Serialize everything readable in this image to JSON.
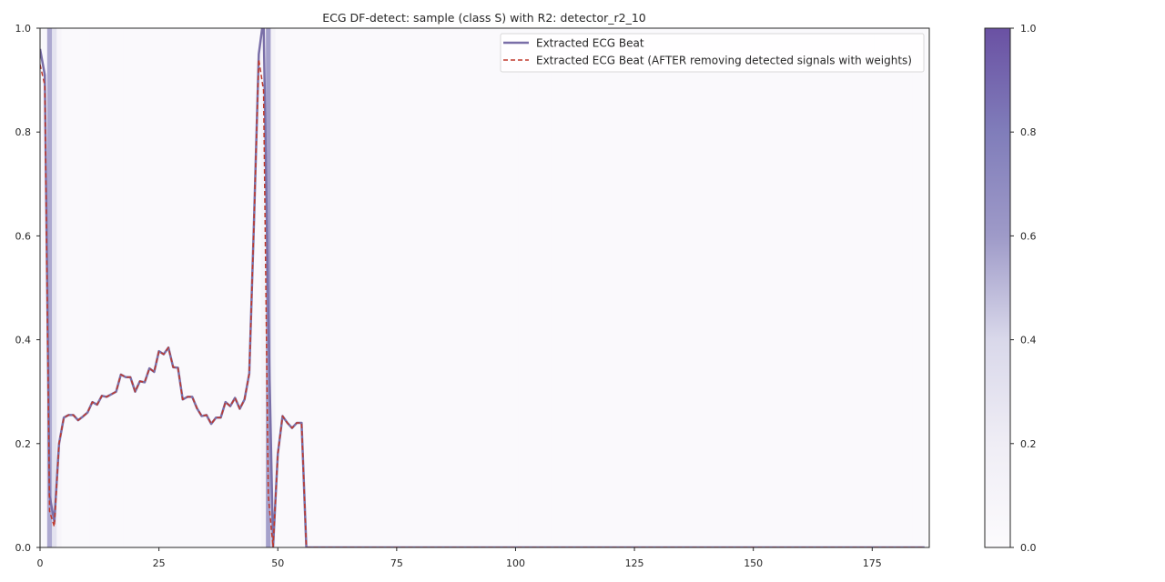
{
  "chart_data": {
    "type": "line",
    "title": "ECG DF-detect: sample (class S) with R2: detector_r2_10",
    "xlabel": "",
    "ylabel": "",
    "xlim": [
      0,
      187
    ],
    "ylim": [
      0,
      1.0
    ],
    "x_ticks": [
      0,
      25,
      50,
      75,
      100,
      125,
      150,
      175
    ],
    "y_ticks": [
      0.0,
      0.2,
      0.4,
      0.6,
      0.8,
      1.0
    ],
    "grid": false,
    "legend_position": "top-right",
    "series": [
      {
        "name": "Extracted ECG Beat",
        "style": "solid",
        "color": "#7a6fa8",
        "x": [
          0,
          1,
          2,
          3,
          4,
          5,
          6,
          7,
          8,
          9,
          10,
          11,
          12,
          13,
          14,
          15,
          16,
          17,
          18,
          19,
          20,
          21,
          22,
          23,
          24,
          25,
          26,
          27,
          28,
          29,
          30,
          31,
          32,
          33,
          34,
          35,
          36,
          37,
          38,
          39,
          40,
          41,
          42,
          43,
          44,
          45,
          46,
          47,
          48,
          49,
          50,
          51,
          52,
          53,
          54,
          55,
          56,
          57,
          186
        ],
        "values": [
          0.96,
          0.91,
          0.1,
          0.05,
          0.2,
          0.25,
          0.255,
          0.255,
          0.245,
          0.252,
          0.26,
          0.28,
          0.275,
          0.292,
          0.29,
          0.295,
          0.3,
          0.333,
          0.328,
          0.328,
          0.3,
          0.32,
          0.318,
          0.345,
          0.338,
          0.378,
          0.372,
          0.385,
          0.347,
          0.346,
          0.285,
          0.29,
          0.29,
          0.268,
          0.253,
          0.255,
          0.238,
          0.25,
          0.25,
          0.28,
          0.272,
          0.288,
          0.267,
          0.285,
          0.335,
          0.63,
          0.95,
          1.02,
          0.45,
          0.0,
          0.18,
          0.253,
          0.24,
          0.23,
          0.24,
          0.24,
          0.0,
          0.0,
          0.0
        ]
      },
      {
        "name": "Extracted ECG Beat (AFTER removing detected signals with weights)",
        "style": "dashed",
        "color": "#c0392b",
        "x": [
          0,
          1,
          2,
          3,
          4,
          5,
          6,
          7,
          8,
          9,
          10,
          11,
          12,
          13,
          14,
          15,
          16,
          17,
          18,
          19,
          20,
          21,
          22,
          23,
          24,
          25,
          26,
          27,
          28,
          29,
          30,
          31,
          32,
          33,
          34,
          35,
          36,
          37,
          38,
          39,
          40,
          41,
          42,
          43,
          44,
          45,
          46,
          47,
          48,
          49,
          50,
          51,
          52,
          53,
          54,
          55,
          56,
          57,
          186
        ],
        "values": [
          0.93,
          0.89,
          0.07,
          0.04,
          0.2,
          0.25,
          0.255,
          0.255,
          0.245,
          0.252,
          0.26,
          0.28,
          0.275,
          0.292,
          0.29,
          0.295,
          0.3,
          0.333,
          0.328,
          0.328,
          0.3,
          0.32,
          0.318,
          0.345,
          0.338,
          0.378,
          0.372,
          0.385,
          0.347,
          0.346,
          0.285,
          0.29,
          0.29,
          0.268,
          0.253,
          0.255,
          0.238,
          0.25,
          0.25,
          0.28,
          0.272,
          0.288,
          0.267,
          0.285,
          0.335,
          0.63,
          0.94,
          0.88,
          0.1,
          0.0,
          0.18,
          0.253,
          0.24,
          0.23,
          0.24,
          0.24,
          0.0,
          0.0,
          0.0
        ]
      }
    ],
    "heatmap_weights": {
      "x": [
        0,
        1,
        2,
        3,
        4,
        5,
        6,
        7,
        8,
        9,
        10,
        11,
        12,
        13,
        14,
        15,
        16,
        17,
        18,
        19,
        20,
        21,
        22,
        23,
        24,
        25,
        26,
        27,
        28,
        29,
        30,
        31,
        32,
        33,
        34,
        35,
        36,
        37,
        38,
        39,
        40,
        41,
        42,
        43,
        44,
        45,
        46,
        47,
        48,
        49,
        50,
        51,
        52,
        53,
        54,
        55,
        56,
        57,
        58,
        59,
        60,
        61,
        62,
        63,
        64,
        65,
        66,
        67,
        68,
        69,
        70,
        71,
        72,
        73,
        74,
        75,
        76,
        77,
        78,
        79,
        80,
        81,
        82,
        83,
        84,
        85,
        86,
        87,
        88,
        89,
        90,
        91,
        92,
        93,
        94,
        95,
        96,
        97,
        98,
        99,
        100,
        101,
        102,
        103,
        104,
        105,
        106,
        107,
        108,
        109,
        110,
        111,
        112,
        113,
        114,
        115,
        116,
        117,
        118,
        119,
        120,
        121,
        122,
        123,
        124,
        125,
        126,
        127,
        128,
        129,
        130,
        131,
        132,
        133,
        134,
        135,
        136,
        137,
        138,
        139,
        140,
        141,
        142,
        143,
        144,
        145,
        146,
        147,
        148,
        149,
        150,
        151,
        152,
        153,
        154,
        155,
        156,
        157,
        158,
        159,
        160,
        161,
        162,
        163,
        164,
        165,
        166,
        167,
        168,
        169,
        170,
        171,
        172,
        173,
        174,
        175,
        176,
        177,
        178,
        179,
        180,
        181,
        182,
        183,
        184,
        185,
        186
      ],
      "values": [
        0.03,
        0.06,
        0.55,
        0.3,
        0.08,
        0.03,
        0.03,
        0.03,
        0.03,
        0.03,
        0.03,
        0.03,
        0.03,
        0.03,
        0.03,
        0.03,
        0.03,
        0.03,
        0.03,
        0.03,
        0.03,
        0.03,
        0.03,
        0.03,
        0.03,
        0.03,
        0.03,
        0.03,
        0.03,
        0.03,
        0.03,
        0.03,
        0.03,
        0.03,
        0.03,
        0.03,
        0.03,
        0.03,
        0.03,
        0.03,
        0.03,
        0.03,
        0.03,
        0.03,
        0.03,
        0.03,
        0.03,
        0.1,
        0.58,
        0.12,
        0.03,
        0.03,
        0.03,
        0.03,
        0.03,
        0.03,
        0.03,
        0.03,
        0.03,
        0.03,
        0.03,
        0.03,
        0.03,
        0.03,
        0.03,
        0.03,
        0.03,
        0.03,
        0.03,
        0.03,
        0.03,
        0.03,
        0.03,
        0.03,
        0.03,
        0.03,
        0.03,
        0.03,
        0.03,
        0.03,
        0.03,
        0.03,
        0.03,
        0.03,
        0.03,
        0.03,
        0.03,
        0.03,
        0.03,
        0.03,
        0.03,
        0.03,
        0.03,
        0.03,
        0.03,
        0.03,
        0.03,
        0.03,
        0.03,
        0.03,
        0.03,
        0.03,
        0.03,
        0.03,
        0.03,
        0.03,
        0.03,
        0.03,
        0.03,
        0.03,
        0.03,
        0.03,
        0.03,
        0.03,
        0.03,
        0.03,
        0.03,
        0.03,
        0.03,
        0.03,
        0.03,
        0.03,
        0.03,
        0.03,
        0.03,
        0.03,
        0.03,
        0.03,
        0.03,
        0.03,
        0.03,
        0.03,
        0.03,
        0.03,
        0.03,
        0.03,
        0.03,
        0.03,
        0.03,
        0.03,
        0.03,
        0.03,
        0.03,
        0.03,
        0.03,
        0.03,
        0.03,
        0.03,
        0.03,
        0.03,
        0.03,
        0.03,
        0.03,
        0.03,
        0.03,
        0.03,
        0.03,
        0.03,
        0.03,
        0.03,
        0.03,
        0.03,
        0.03,
        0.03,
        0.03,
        0.03,
        0.03,
        0.03,
        0.03,
        0.03,
        0.03,
        0.03,
        0.03,
        0.03,
        0.03,
        0.03,
        0.03,
        0.03,
        0.03,
        0.03,
        0.03,
        0.03,
        0.03,
        0.03,
        0.03,
        0.03,
        0.03
      ],
      "colormap": "Purples",
      "colorbar_range": [
        0.0,
        1.0
      ],
      "colorbar_ticks": [
        0.0,
        0.2,
        0.4,
        0.6,
        0.8,
        1.0
      ]
    }
  }
}
